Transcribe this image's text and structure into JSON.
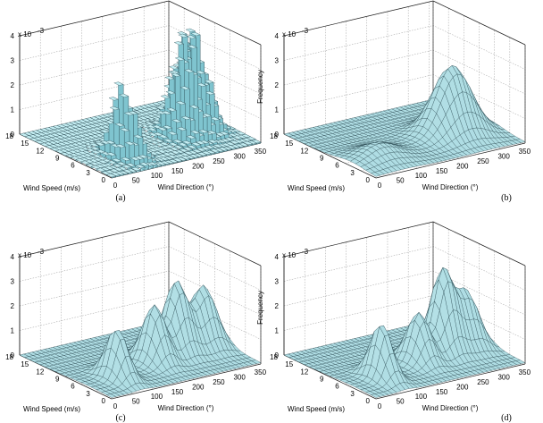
{
  "chart_data": [
    {
      "type": "3d-bar-histogram",
      "panel_label": "(a)",
      "xlabel": "Wind Direction (°)",
      "ylabel": "Wind Speed (m/s)",
      "zlabel": "Frequency",
      "z_exponent": "x 10",
      "z_exponent_power": "-3",
      "x_ticks": [
        "0",
        "50",
        "100",
        "150",
        "200",
        "250",
        "300",
        "350"
      ],
      "y_ticks": [
        "0",
        "3",
        "6",
        "9",
        "12",
        "15",
        "18"
      ],
      "z_ticks": [
        "0",
        "1",
        "2",
        "3",
        "4"
      ],
      "xlim": [
        0,
        360
      ],
      "ylim": [
        0,
        18
      ],
      "zlim": [
        0,
        4
      ],
      "peaks": [
        {
          "direction": 90,
          "speed": 5,
          "frequency": 2.6
        },
        {
          "direction": 250,
          "speed": 7,
          "frequency": 3.0
        },
        {
          "direction": 295,
          "speed": 8,
          "frequency": 3.8
        }
      ]
    },
    {
      "type": "3d-surface",
      "panel_label": "(b)",
      "xlabel": "Wind Direction (°)",
      "ylabel": "Wind Speed (m/s)",
      "zlabel": "Frequency",
      "z_exponent": "x 10",
      "z_exponent_power": "-3",
      "x_ticks": [
        "0",
        "50",
        "100",
        "150",
        "200",
        "250",
        "300",
        "350"
      ],
      "y_ticks": [
        "0",
        "3",
        "6",
        "9",
        "12",
        "15",
        "18"
      ],
      "z_ticks": [
        "0",
        "1",
        "2",
        "3",
        "4"
      ],
      "xlim": [
        0,
        360
      ],
      "ylim": [
        0,
        18
      ],
      "zlim": [
        0,
        4
      ],
      "peaks": [
        {
          "direction": 70,
          "speed": 5,
          "frequency": 0.55
        },
        {
          "direction": 270,
          "speed": 7,
          "frequency": 2.75
        }
      ]
    },
    {
      "type": "3d-surface",
      "panel_label": "(c)",
      "xlabel": "Wind Direction (°)",
      "ylabel": "Wind Speed (m/s)",
      "zlabel": "Frequency",
      "z_exponent": "x 10",
      "z_exponent_power": "-3",
      "x_ticks": [
        "0",
        "50",
        "100",
        "150",
        "200",
        "250",
        "300",
        "350"
      ],
      "y_ticks": [
        "0",
        "3",
        "6",
        "9",
        "12",
        "15",
        "18"
      ],
      "z_ticks": [
        "0",
        "1",
        "2",
        "3",
        "4"
      ],
      "xlim": [
        0,
        360
      ],
      "ylim": [
        0,
        18
      ],
      "zlim": [
        0,
        4
      ],
      "peaks": [
        {
          "direction": 75,
          "speed": 5,
          "frequency": 2.0
        },
        {
          "direction": 190,
          "speed": 7,
          "frequency": 2.3
        },
        {
          "direction": 255,
          "speed": 8,
          "frequency": 2.9
        },
        {
          "direction": 320,
          "speed": 8,
          "frequency": 2.5
        }
      ]
    },
    {
      "type": "3d-surface",
      "panel_label": "(d)",
      "xlabel": "Wind Direction (°)",
      "ylabel": "Wind Speed (m/s)",
      "zlabel": "Frequency",
      "z_exponent": "x 10",
      "z_exponent_power": "-3",
      "x_ticks": [
        "0",
        "50",
        "100",
        "150",
        "200",
        "250",
        "300",
        "350"
      ],
      "y_ticks": [
        "0",
        "3",
        "6",
        "9",
        "12",
        "15",
        "18"
      ],
      "z_ticks": [
        "0",
        "1",
        "2",
        "3",
        "4"
      ],
      "xlim": [
        0,
        360
      ],
      "ylim": [
        0,
        18
      ],
      "zlim": [
        0,
        4
      ],
      "peaks": [
        {
          "direction": 75,
          "speed": 5,
          "frequency": 2.2
        },
        {
          "direction": 190,
          "speed": 7,
          "frequency": 2.0
        },
        {
          "direction": 260,
          "speed": 8,
          "frequency": 3.3
        },
        {
          "direction": 315,
          "speed": 8,
          "frequency": 2.3
        }
      ]
    }
  ],
  "colors": {
    "surface": "#a6e1ea",
    "edge": "#1f3d44",
    "bar_side": "#7fc4cf",
    "bar_top": "#c4eef3"
  }
}
